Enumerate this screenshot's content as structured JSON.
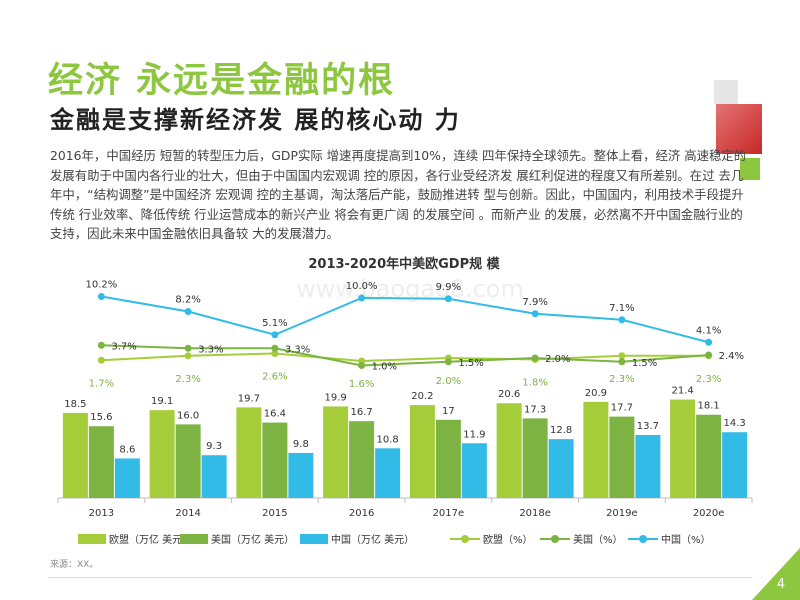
{
  "page": {
    "title": "经济 永远是金融的根",
    "subtitle": "金融是支撑新经济发 展的核心动 力",
    "body": "2016年，中国经历 短暂的转型压力后，GDP实际 增速再度提高到10%，连续 四年保持全球领先。整体上看，经济 高速稳定的发展有助于中国内各行业的壮大，但由于中国国内宏观调 控的原因，各行业受经济发 展红利促进的程度又有所差别。在过 去几年中，“结构调整”是中国经济 宏观调 控的主基调，淘汰落后产能，鼓励推进转 型与创新。因此，中国国内，利用技术手段提升传统 行业效率、降低传统 行业运营成本的新兴产业 将会有更广阔 的发展空间 。而新产业 的发展，必然离不开中国金融行业的支持，因此未来中国金融依旧具备较 大的发展潜力。",
    "source": "来源：XX。",
    "page_number": "4",
    "watermark": "www.baogao8.com",
    "colors": {
      "title_green": "#8dc63f",
      "deco_red": "#d9434e",
      "deco_green": "#8dc63f",
      "deco_gray": "#e6e6e6"
    }
  },
  "chart_data": {
    "type": "bar",
    "title": "2013-2020年中美欧GDP规 模",
    "categories": [
      "2013",
      "2014",
      "2015",
      "2016",
      "2017e",
      "2018e",
      "2019e",
      "2020e"
    ],
    "series": [
      {
        "name": "欧盟（万亿 美元）",
        "kind": "bar",
        "color": "#a5cd39",
        "values": [
          18.5,
          19.1,
          19.7,
          19.9,
          20.2,
          20.6,
          20.9,
          21.4
        ],
        "labels": [
          "18.5",
          "19.1",
          "19.7",
          "19.9",
          "20.2",
          "20.6",
          "20.9",
          "21.4"
        ]
      },
      {
        "name": "美国（万亿 美元）",
        "kind": "bar",
        "color": "#7cb342",
        "values": [
          15.6,
          16.0,
          16.4,
          16.7,
          17.0,
          17.3,
          17.7,
          18.1
        ],
        "labels": [
          "15.6",
          "16.0",
          "16.4",
          "16.7",
          "17",
          "17.3",
          "17.7",
          "18.1"
        ]
      },
      {
        "name": "中国（万亿 美元）",
        "kind": "bar",
        "color": "#33bbe8",
        "values": [
          8.6,
          9.3,
          9.8,
          10.8,
          11.9,
          12.8,
          13.7,
          14.3
        ],
        "labels": [
          "8.6",
          "9.3",
          "9.8",
          "10.8",
          "11.9",
          "12.8",
          "13.7",
          "14.3"
        ]
      },
      {
        "name": "欧盟（%）",
        "kind": "line",
        "color": "#a5cd39",
        "values": [
          1.7,
          2.3,
          2.6,
          1.6,
          2.0,
          1.8,
          2.3,
          2.3
        ],
        "labels": [
          "1.7%",
          "2.3%",
          "2.6%",
          "1.6%",
          "2.0%",
          "1.8%",
          "2.3%",
          "2.3%"
        ]
      },
      {
        "name": "美国（%）",
        "kind": "line",
        "color": "#7cb342",
        "values": [
          3.7,
          3.3,
          3.3,
          1.0,
          1.5,
          2.0,
          1.5,
          2.4
        ],
        "labels": [
          "3.7%",
          "3.3%",
          "3.3%",
          "1.0%",
          "1.5%",
          "2.0%",
          "1.5%",
          "2.4%"
        ]
      },
      {
        "name": "中国（%）",
        "kind": "line",
        "color": "#33bbe8",
        "values": [
          10.2,
          8.2,
          5.1,
          10.0,
          9.9,
          7.9,
          7.1,
          4.1
        ],
        "labels": [
          "10.2%",
          "8.2%",
          "5.1%",
          "10.0%",
          "9.9%",
          "7.9%",
          "7.1%",
          "4.1%"
        ]
      }
    ]
  }
}
